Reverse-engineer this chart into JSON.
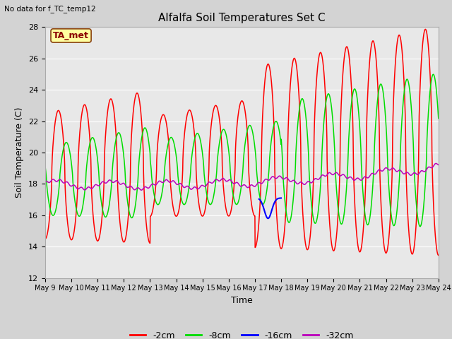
{
  "title": "Alfalfa Soil Temperatures Set C",
  "xlabel": "Time",
  "ylabel": "Soil Temperature (C)",
  "ylim": [
    12,
    28
  ],
  "yticks": [
    12,
    14,
    16,
    18,
    20,
    22,
    24,
    26,
    28
  ],
  "xtick_labels": [
    "May 9",
    "May 10",
    "May 11",
    "May 12",
    "May 13",
    "May 14",
    "May 15",
    "May 16",
    "May 17",
    "May 18",
    "May 19",
    "May 20",
    "May 21",
    "May 22",
    "May 23",
    "May 24"
  ],
  "no_data_text": "No data for f_TC_temp12",
  "ta_met_label": "TA_met",
  "fig_bg": "#d3d3d3",
  "ax_bg": "#e8e8e8",
  "grid_color": "#ffffff",
  "colors": {
    "2cm": "#ff0000",
    "8cm": "#00dd00",
    "16cm": "#0000ff",
    "32cm": "#bb00bb"
  },
  "legend_labels": [
    "-2cm",
    "-8cm",
    "-16cm",
    "-32cm"
  ]
}
